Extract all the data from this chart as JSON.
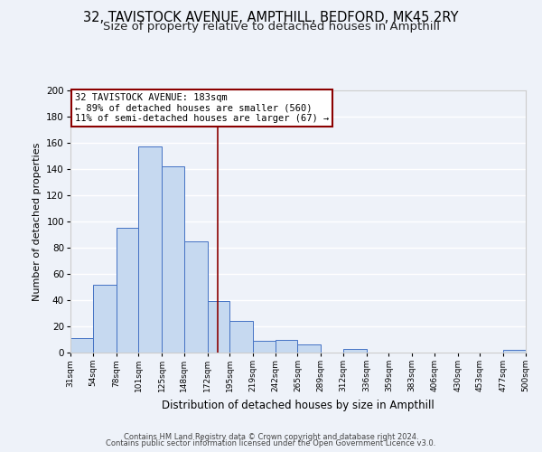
{
  "title1": "32, TAVISTOCK AVENUE, AMPTHILL, BEDFORD, MK45 2RY",
  "title2": "Size of property relative to detached houses in Ampthill",
  "xlabel": "Distribution of detached houses by size in Ampthill",
  "ylabel": "Number of detached properties",
  "bin_edges": [
    31,
    54,
    78,
    101,
    125,
    148,
    172,
    195,
    219,
    242,
    265,
    289,
    312,
    336,
    359,
    383,
    406,
    430,
    453,
    477,
    500
  ],
  "bar_heights": [
    11,
    52,
    95,
    157,
    142,
    85,
    39,
    24,
    9,
    10,
    6,
    0,
    3,
    0,
    0,
    0,
    0,
    0,
    0,
    2
  ],
  "bar_color": "#c6d9f0",
  "bar_edge_color": "#4472c4",
  "vline_x": 183,
  "vline_color": "#8b0000",
  "ylim": [
    0,
    200
  ],
  "yticks": [
    0,
    20,
    40,
    60,
    80,
    100,
    120,
    140,
    160,
    180,
    200
  ],
  "xtick_labels": [
    "31sqm",
    "54sqm",
    "78sqm",
    "101sqm",
    "125sqm",
    "148sqm",
    "172sqm",
    "195sqm",
    "219sqm",
    "242sqm",
    "265sqm",
    "289sqm",
    "312sqm",
    "336sqm",
    "359sqm",
    "383sqm",
    "406sqm",
    "430sqm",
    "453sqm",
    "477sqm",
    "500sqm"
  ],
  "annotation_title": "32 TAVISTOCK AVENUE: 183sqm",
  "annotation_line1": "← 89% of detached houses are smaller (560)",
  "annotation_line2": "11% of semi-detached houses are larger (67) →",
  "annotation_box_color": "#ffffff",
  "annotation_border_color": "#8b0000",
  "footer1": "Contains HM Land Registry data © Crown copyright and database right 2024.",
  "footer2": "Contains public sector information licensed under the Open Government Licence v3.0.",
  "background_color": "#eef2f9",
  "grid_color": "#ffffff",
  "title1_fontsize": 10.5,
  "title2_fontsize": 9.5
}
